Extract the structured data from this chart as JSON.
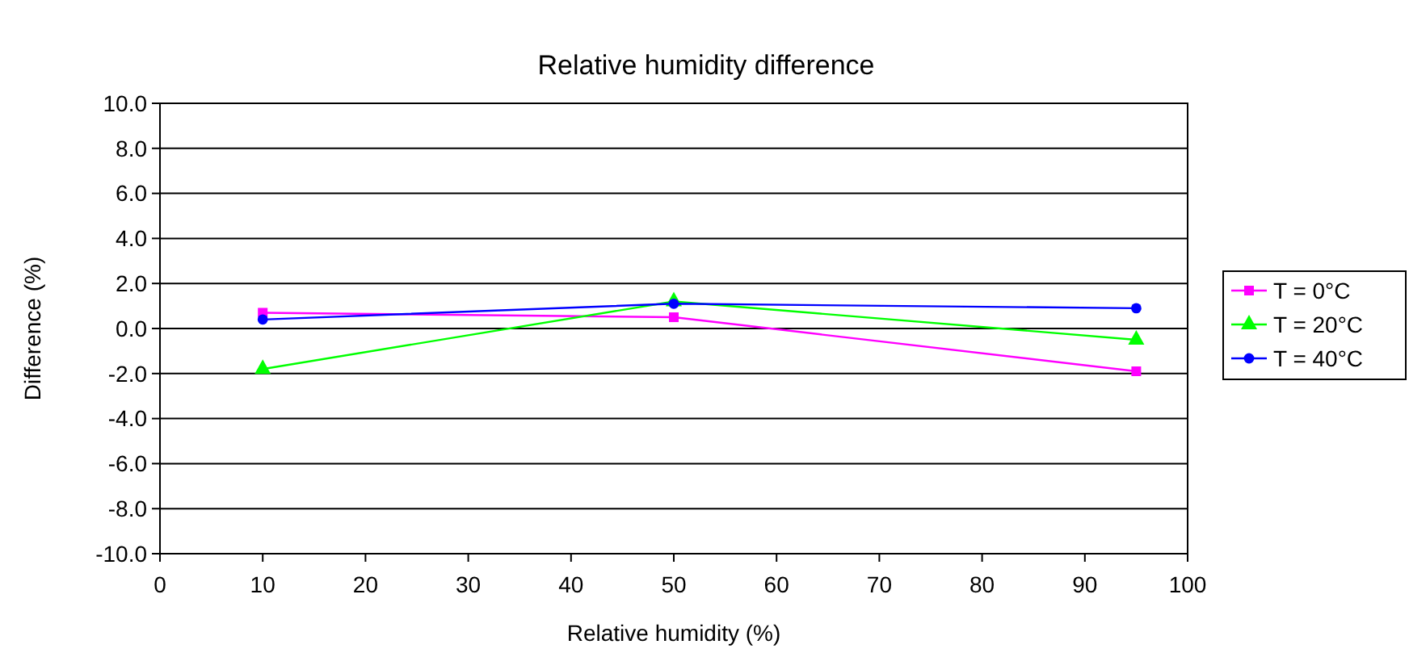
{
  "chart_data": {
    "type": "line",
    "title": "Relative humidity difference",
    "xlabel": "Relative humidity (%)",
    "ylabel": "Difference (%)",
    "x": [
      10,
      50,
      95
    ],
    "series": [
      {
        "name": "T = 0°C",
        "color": "#ff00ff",
        "marker": "square",
        "values": [
          0.7,
          0.5,
          -1.9
        ]
      },
      {
        "name": "T = 20°C",
        "color": "#00ff00",
        "marker": "triangle",
        "values": [
          -1.8,
          1.2,
          -0.5
        ]
      },
      {
        "name": "T = 40°C",
        "color": "#0000ff",
        "marker": "circle",
        "values": [
          0.4,
          1.1,
          0.9
        ]
      }
    ],
    "xlim": [
      0,
      100
    ],
    "xticks": [
      0,
      10,
      20,
      30,
      40,
      50,
      60,
      70,
      80,
      90,
      100
    ],
    "ylim": [
      -10,
      10
    ],
    "yticks": [
      {
        "value": -10,
        "label": "-10.0"
      },
      {
        "value": -8,
        "label": "-8.0"
      },
      {
        "value": -6,
        "label": "-6.0"
      },
      {
        "value": -4,
        "label": "-4.0"
      },
      {
        "value": -2,
        "label": "-2.0"
      },
      {
        "value": 0,
        "label": "0.0"
      },
      {
        "value": 2,
        "label": "2.0"
      },
      {
        "value": 4,
        "label": "4.0"
      },
      {
        "value": 6,
        "label": "6.0"
      },
      {
        "value": 8,
        "label": "8.0"
      },
      {
        "value": 10,
        "label": "10.0"
      }
    ],
    "grid": "y",
    "legend": "right"
  }
}
